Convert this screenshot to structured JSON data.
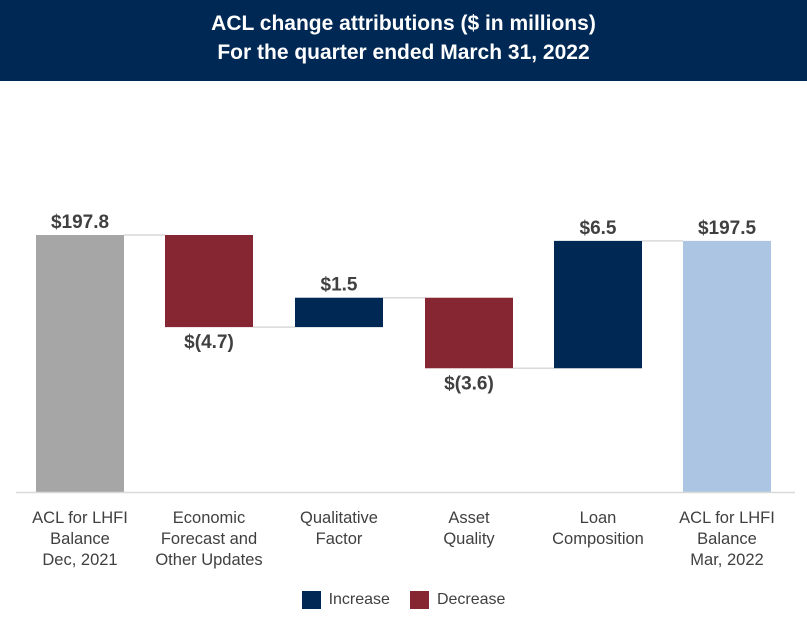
{
  "title": {
    "line1": "ACL change attributions ($ in millions)",
    "line2": "For the quarter ended March 31, 2022"
  },
  "colors": {
    "header_bg": "#002855",
    "increase": "#002855",
    "decrease": "#862633",
    "start_total": "#a6a6a6",
    "end_total": "#abc5e3"
  },
  "chart_data": {
    "type": "bar",
    "subtype": "waterfall",
    "title": "ACL change attributions ($ in millions)",
    "subtitle": "For the quarter ended March 31, 2022",
    "categories": [
      "ACL for LHFI\nBalance\nDec, 2021",
      "Economic\nForecast and\nOther Updates",
      "Qualitative\nFactor",
      "Asset\nQuality",
      "Loan\nComposition",
      "ACL for LHFI\nBalance\nMar, 2022"
    ],
    "values": [
      197.8,
      -4.7,
      1.5,
      -3.6,
      6.5,
      197.5
    ],
    "kinds": [
      "total",
      "decrease",
      "increase",
      "decrease",
      "increase",
      "total"
    ],
    "data_labels": [
      "$197.8",
      "$(4.7)",
      "$1.5",
      "$(3.6)",
      "$6.5",
      "$197.5"
    ],
    "legend": [
      {
        "label": "Increase",
        "kind": "increase"
      },
      {
        "label": "Decrease",
        "kind": "decrease"
      }
    ],
    "legend_position": "bottom",
    "grid": false
  }
}
